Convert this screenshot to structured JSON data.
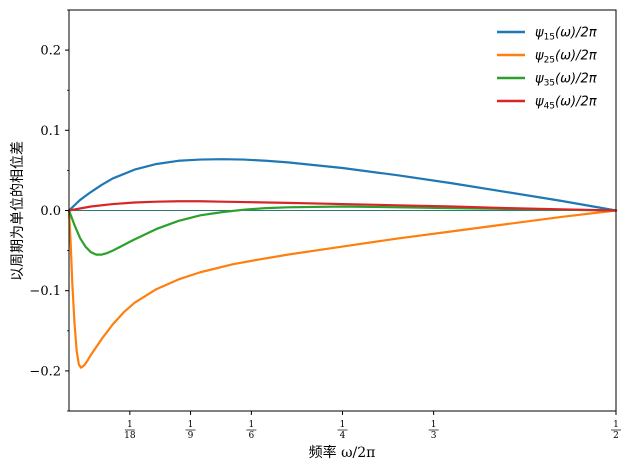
{
  "chart_data": {
    "type": "line",
    "xlabel": "频率 ω/2π",
    "ylabel": "以周期为单位的相位差",
    "xlim": [
      0,
      0.5
    ],
    "ylim": [
      -0.25,
      0.25
    ],
    "yticks": [
      -0.2,
      -0.1,
      0.0,
      0.1,
      0.2
    ],
    "yticklabels": [
      "−0.2",
      "−0.1",
      "0.0",
      "0.1",
      "0.2"
    ],
    "xticks": [
      {
        "value": 0.0556,
        "num": "1",
        "den": "18"
      },
      {
        "value": 0.1111,
        "num": "1",
        "den": "9"
      },
      {
        "value": 0.1667,
        "num": "1",
        "den": "6"
      },
      {
        "value": 0.25,
        "num": "1",
        "den": "4"
      },
      {
        "value": 0.3333,
        "num": "1",
        "den": "3"
      },
      {
        "value": 0.5,
        "num": "1",
        "den": "2"
      }
    ],
    "legend_position": "top-right",
    "series": [
      {
        "name": "ψ15(ω)/2π",
        "legend_main": "ψ",
        "legend_sub": "15",
        "legend_rest": "(ω)/2π",
        "color": "#1f77b4",
        "x": [
          0,
          0.01,
          0.02,
          0.03,
          0.04,
          0.06,
          0.08,
          0.1,
          0.12,
          0.14,
          0.16,
          0.18,
          0.2,
          0.25,
          0.3,
          0.35,
          0.4,
          0.45,
          0.5
        ],
        "y": [
          0,
          0.013,
          0.023,
          0.032,
          0.04,
          0.051,
          0.058,
          0.062,
          0.0635,
          0.064,
          0.0635,
          0.062,
          0.06,
          0.053,
          0.044,
          0.034,
          0.023,
          0.012,
          0
        ]
      },
      {
        "name": "ψ25(ω)/2π",
        "legend_main": "ψ",
        "legend_sub": "25",
        "legend_rest": "(ω)/2π",
        "color": "#ff7f0e",
        "x": [
          0,
          0.0015,
          0.003,
          0.005,
          0.007,
          0.009,
          0.011,
          0.014,
          0.017,
          0.02,
          0.025,
          0.03,
          0.04,
          0.05,
          0.06,
          0.08,
          0.1,
          0.12,
          0.15,
          0.17,
          0.2,
          0.25,
          0.3,
          0.35,
          0.4,
          0.45,
          0.5
        ],
        "y": [
          0,
          -0.04,
          -0.09,
          -0.14,
          -0.175,
          -0.192,
          -0.196,
          -0.193,
          -0.187,
          -0.18,
          -0.17,
          -0.16,
          -0.142,
          -0.127,
          -0.115,
          -0.098,
          -0.086,
          -0.077,
          -0.067,
          -0.062,
          -0.055,
          -0.045,
          -0.035,
          -0.026,
          -0.017,
          -0.008,
          0
        ]
      },
      {
        "name": "ψ35(ω)/2π",
        "legend_main": "ψ",
        "legend_sub": "35",
        "legend_rest": "(ω)/2π",
        "color": "#2ca02c",
        "x": [
          0,
          0.005,
          0.01,
          0.015,
          0.02,
          0.025,
          0.03,
          0.035,
          0.04,
          0.05,
          0.06,
          0.08,
          0.1,
          0.12,
          0.14,
          0.16,
          0.18,
          0.2,
          0.25,
          0.3,
          0.35,
          0.4,
          0.45,
          0.5
        ],
        "y": [
          0,
          -0.018,
          -0.034,
          -0.045,
          -0.052,
          -0.055,
          -0.055,
          -0.053,
          -0.05,
          -0.043,
          -0.036,
          -0.023,
          -0.013,
          -0.006,
          -0.002,
          0.001,
          0.003,
          0.004,
          0.005,
          0.004,
          0.003,
          0.002,
          0.001,
          0
        ]
      },
      {
        "name": "ψ45(ω)/2π",
        "legend_main": "ψ",
        "legend_sub": "45",
        "legend_rest": "(ω)/2π",
        "color": "#d62728",
        "x": [
          0,
          0.02,
          0.04,
          0.06,
          0.08,
          0.1,
          0.12,
          0.14,
          0.16,
          0.2,
          0.25,
          0.3,
          0.35,
          0.4,
          0.45,
          0.5
        ],
        "y": [
          0,
          0.005,
          0.008,
          0.01,
          0.011,
          0.0115,
          0.0115,
          0.011,
          0.0105,
          0.0095,
          0.008,
          0.0065,
          0.005,
          0.003,
          0.0015,
          0
        ]
      }
    ],
    "zero_line_color": "#2a7a7a"
  }
}
